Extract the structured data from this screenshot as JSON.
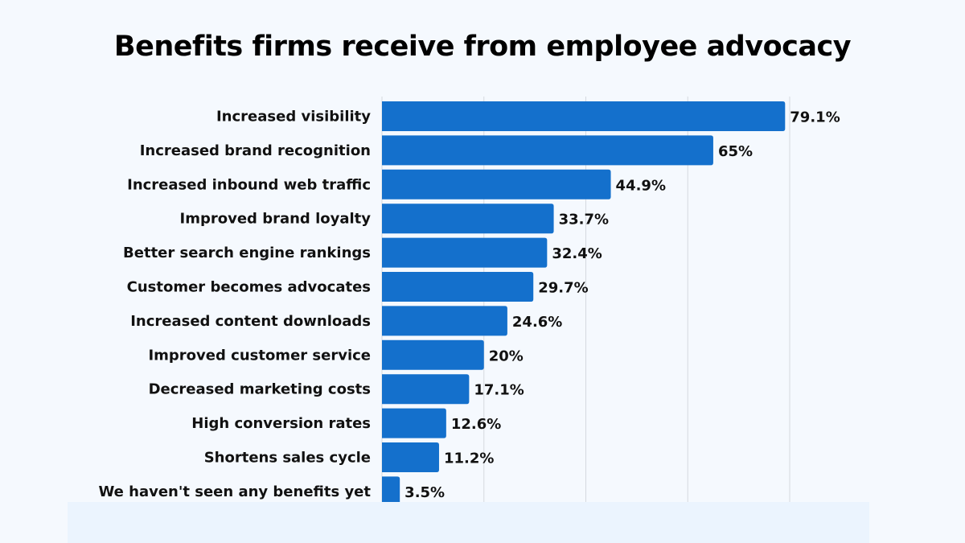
{
  "chart_data": {
    "type": "bar",
    "orientation": "horizontal",
    "title": "Benefits firms receive from employee advocacy",
    "categories": [
      "Increased visibility",
      "Increased brand recognition",
      "Increased inbound web traffic",
      "Improved brand loyalty",
      "Better search engine rankings",
      "Customer becomes advocates",
      "Increased content downloads",
      "Improved customer service",
      "Decreased marketing costs",
      "High conversion rates",
      "Shortens sales cycle",
      "We haven't seen any benefits yet"
    ],
    "values": [
      79.1,
      65,
      44.9,
      33.7,
      32.4,
      29.7,
      24.6,
      20,
      17.1,
      12.6,
      11.2,
      3.5
    ],
    "value_labels": [
      "79.1%",
      "65%",
      "44.9%",
      "33.7%",
      "32.4%",
      "29.7%",
      "24.6%",
      "20%",
      "17.1%",
      "12.6%",
      "11.2%",
      "3.5%"
    ],
    "xlim": [
      0,
      80
    ],
    "gridlines": [
      20,
      40,
      60,
      80
    ],
    "grid": true,
    "colors": {
      "bar": "#1470cc",
      "background": "#f5f9fe",
      "grid": "#d5d9df"
    }
  }
}
